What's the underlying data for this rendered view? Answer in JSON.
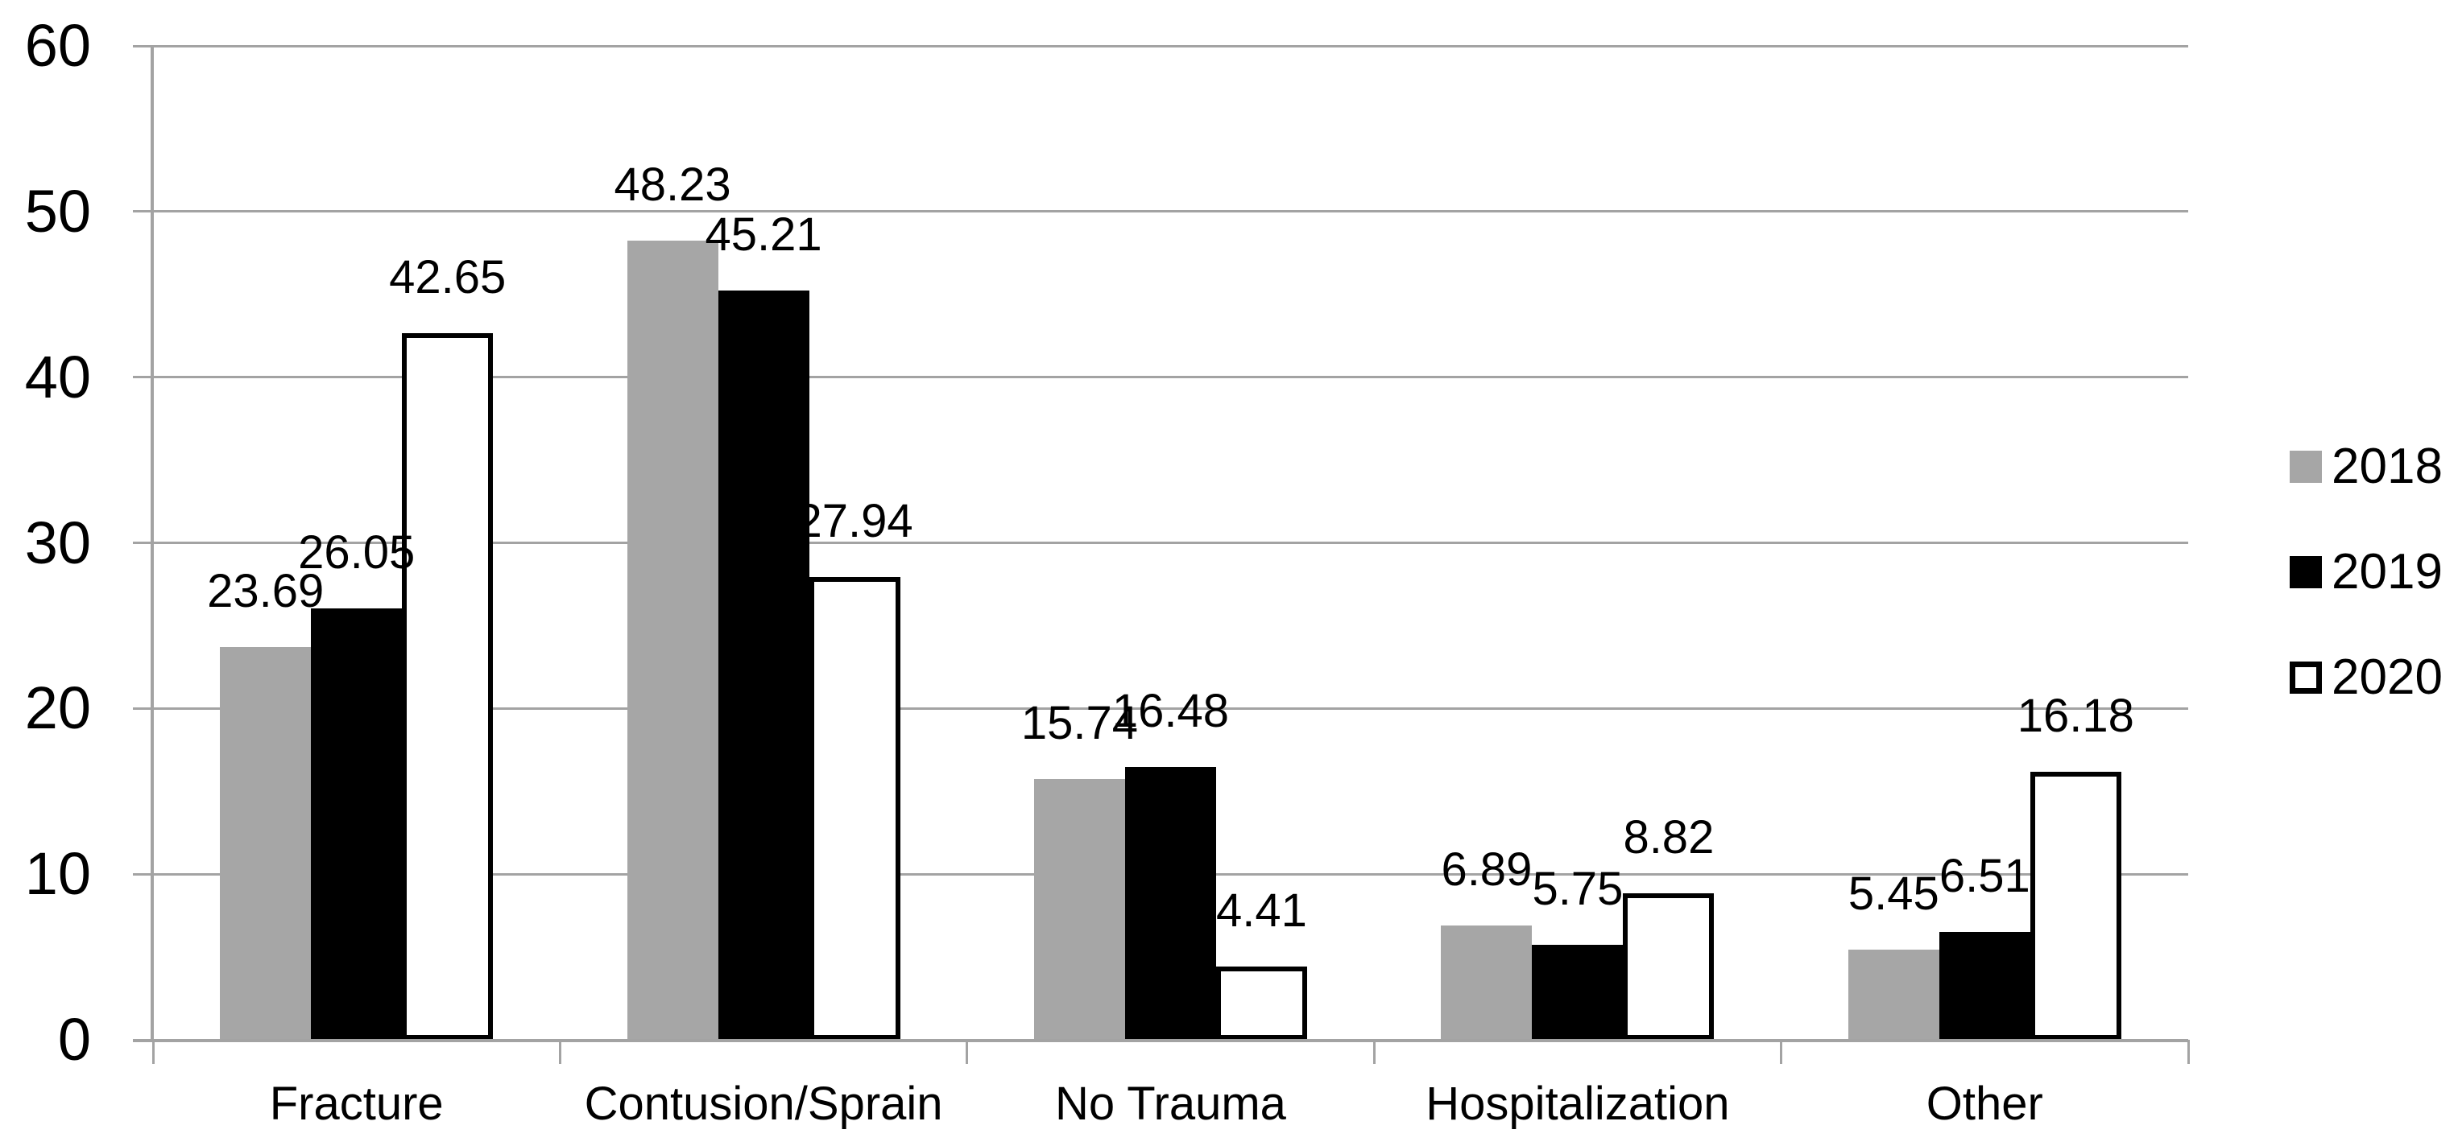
{
  "chart_data": {
    "type": "bar",
    "title": "",
    "xlabel": "",
    "ylabel": "",
    "categories": [
      "Fracture",
      "Contusion/Sprain",
      "No Trauma",
      "Hospitalization",
      "Other"
    ],
    "series": [
      {
        "name": "2018",
        "color": "#a6a6a6",
        "border_color": "",
        "values": [
          23.69,
          48.23,
          15.74,
          6.89,
          5.45
        ]
      },
      {
        "name": "2019",
        "color": "#000000",
        "border_color": "",
        "values": [
          26.05,
          45.21,
          16.48,
          5.75,
          6.51
        ]
      },
      {
        "name": "2020",
        "color": "#ffffff",
        "border_color": "#000000",
        "values": [
          42.65,
          27.94,
          4.41,
          8.82,
          16.18
        ]
      }
    ],
    "data_labels": [
      [
        "23.69",
        "48.23",
        "15.74",
        "6.89",
        "5.45"
      ],
      [
        "26.05",
        "45.21",
        "16.48",
        "5.75",
        "6.51"
      ],
      [
        "42.65",
        "27.94",
        "4.41",
        "8.82",
        "16.18"
      ]
    ],
    "ylim": [
      0,
      60
    ],
    "ytick_step": 10,
    "ytick_labels": [
      "0",
      "10",
      "20",
      "30",
      "40",
      "50",
      "60"
    ],
    "grid": true,
    "gridline_color": "#a3a3a3",
    "legend_position": "right",
    "legend_entries": [
      "2018",
      "2019",
      "2020"
    ]
  }
}
